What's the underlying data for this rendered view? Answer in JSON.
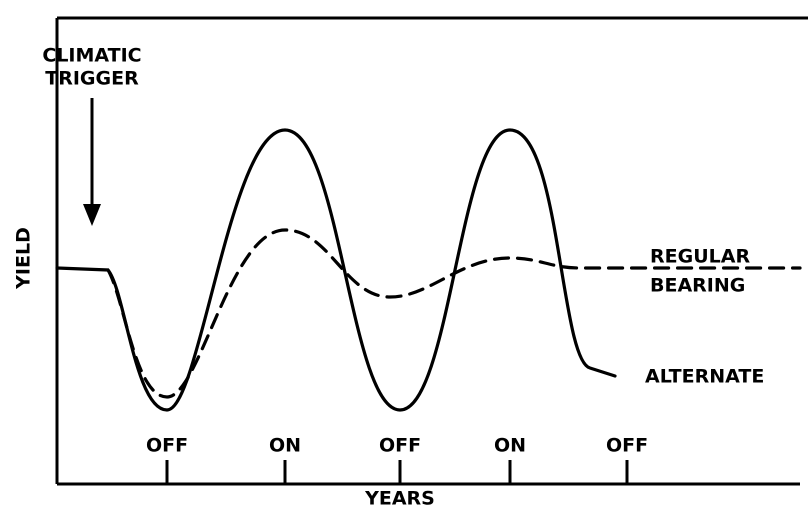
{
  "annotation": {
    "lines": [
      "CLIMATIC",
      "TRIGGER"
    ]
  },
  "y_label": "YIELD",
  "x_label": "YEARS",
  "x_ticks": [
    "OFF",
    "ON",
    "OFF",
    "ON",
    "OFF"
  ],
  "series_labels": {
    "regular": [
      "REGULAR",
      "BEARING"
    ],
    "alternate": "ALTERNATE"
  }
}
